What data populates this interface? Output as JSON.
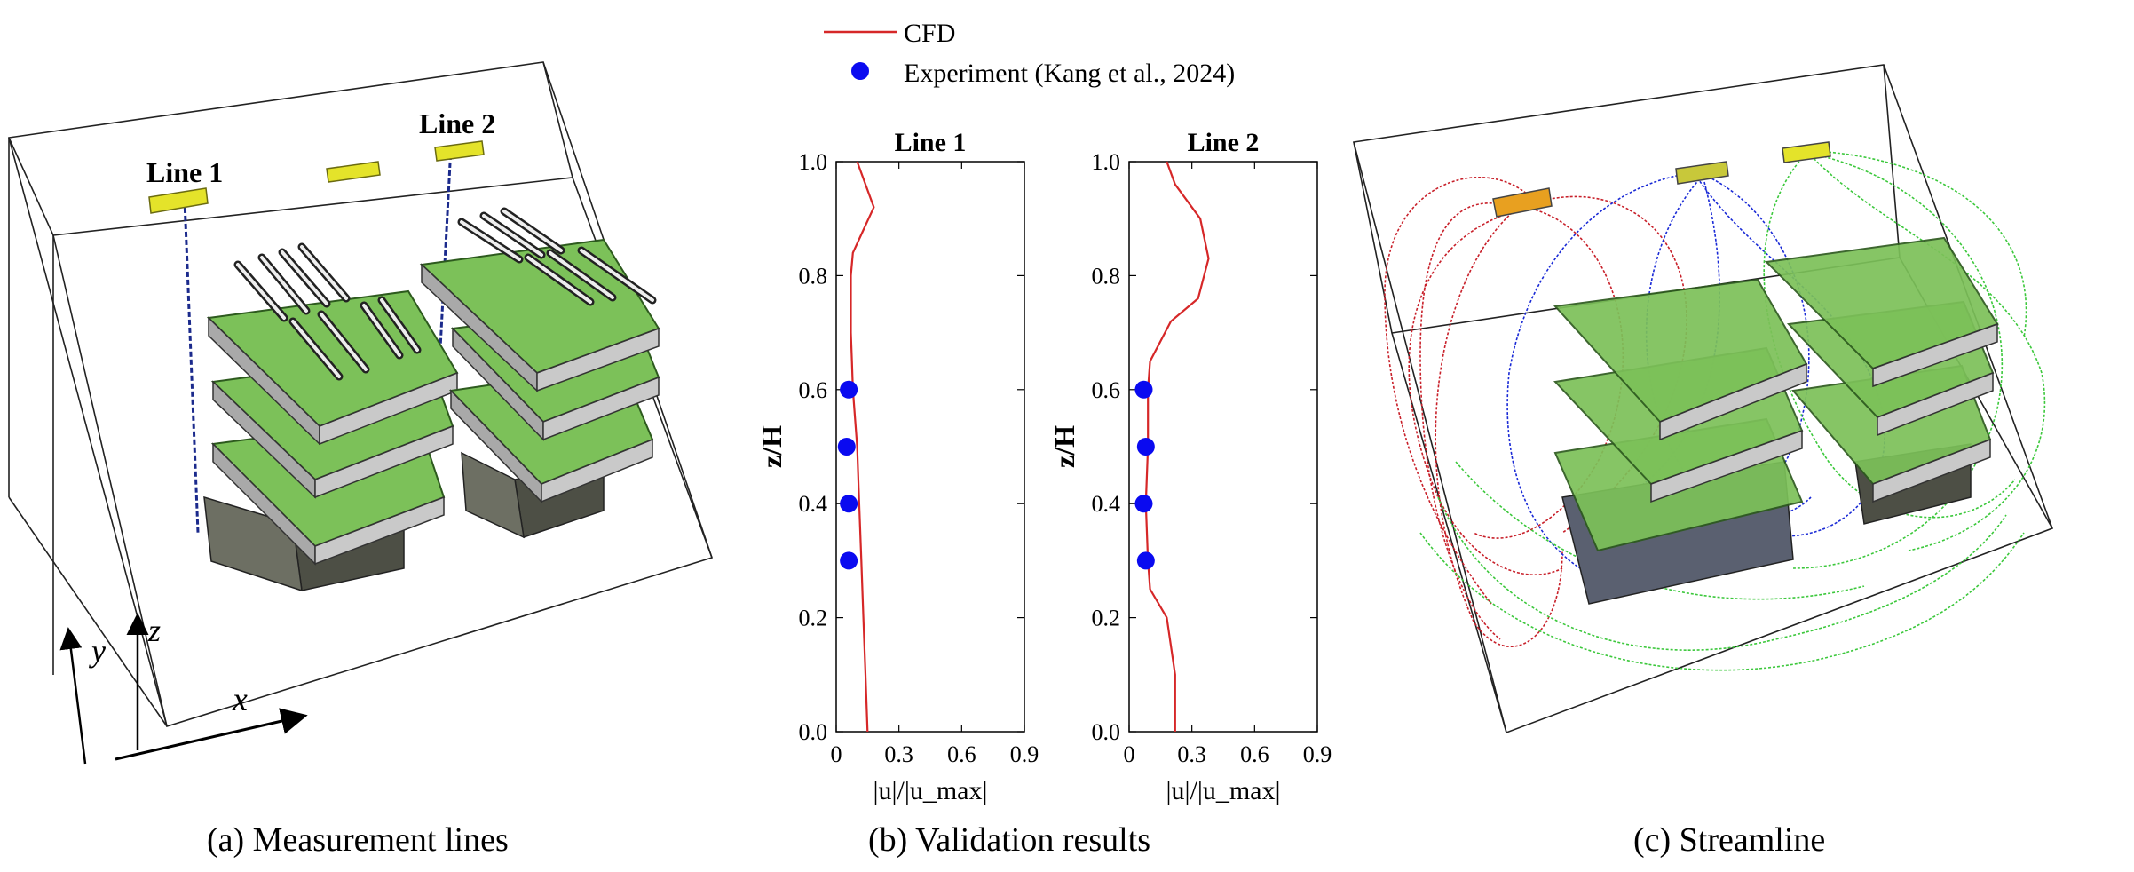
{
  "legend": {
    "cfd_label": "CFD",
    "exp_label": "Experiment (Kang et al., 2024)",
    "cfd_color": "#d62728",
    "exp_color": "#0a0af0"
  },
  "panel_a": {
    "caption": "(a) Measurement lines",
    "line1_label": "Line 1",
    "line2_label": "Line 2",
    "axis_x": "x",
    "axis_y": "y",
    "axis_z": "z"
  },
  "panel_b": {
    "caption": "(b) Validation results"
  },
  "panel_c": {
    "caption": "(c) Streamline"
  },
  "colors": {
    "board_green": "#7cc159",
    "board_edge": "#3f7a2a",
    "vent_yellow": "#e4e32a",
    "streamline_red": "#c8202a",
    "streamline_blue": "#1a2ad6",
    "streamline_green": "#3cc83c"
  },
  "chart_data": [
    {
      "type": "line",
      "title": "Line 1",
      "xlabel": "|u|/|u_max|",
      "ylabel": "z/H",
      "xlim": [
        0,
        0.9
      ],
      "ylim": [
        0,
        1.0
      ],
      "xticks": [
        "0",
        "0.3",
        "0.6",
        "0.9"
      ],
      "yticks": [
        "0.0",
        "0.2",
        "0.4",
        "0.6",
        "0.8",
        "1.0"
      ],
      "series": [
        {
          "name": "CFD",
          "x": [
            0.15,
            0.14,
            0.13,
            0.12,
            0.11,
            0.1,
            0.09,
            0.08,
            0.075,
            0.07,
            0.07,
            0.07,
            0.08,
            0.13,
            0.18,
            0.1
          ],
          "y": [
            0.0,
            0.1,
            0.2,
            0.3,
            0.4,
            0.5,
            0.55,
            0.6,
            0.65,
            0.7,
            0.75,
            0.8,
            0.84,
            0.88,
            0.92,
            1.0
          ]
        },
        {
          "name": "Experiment (Kang et al., 2024)",
          "x": [
            0.06,
            0.06,
            0.05,
            0.06
          ],
          "y": [
            0.3,
            0.4,
            0.5,
            0.6
          ]
        }
      ]
    },
    {
      "type": "line",
      "title": "Line 2",
      "xlabel": "|u|/|u_max|",
      "ylabel": "z/H",
      "xlim": [
        0,
        0.9
      ],
      "ylim": [
        0,
        1.0
      ],
      "xticks": [
        "0",
        "0.3",
        "0.6",
        "0.9"
      ],
      "yticks": [
        "0.0",
        "0.2",
        "0.4",
        "0.6",
        "0.8",
        "1.0"
      ],
      "series": [
        {
          "name": "CFD",
          "x": [
            0.22,
            0.22,
            0.18,
            0.1,
            0.09,
            0.08,
            0.09,
            0.09,
            0.1,
            0.2,
            0.33,
            0.38,
            0.34,
            0.22,
            0.18
          ],
          "y": [
            0.0,
            0.1,
            0.2,
            0.25,
            0.3,
            0.4,
            0.5,
            0.6,
            0.65,
            0.72,
            0.76,
            0.83,
            0.9,
            0.96,
            1.0
          ]
        },
        {
          "name": "Experiment (Kang et al., 2024)",
          "x": [
            0.08,
            0.07,
            0.08,
            0.07
          ],
          "y": [
            0.3,
            0.4,
            0.5,
            0.6
          ]
        }
      ]
    }
  ]
}
